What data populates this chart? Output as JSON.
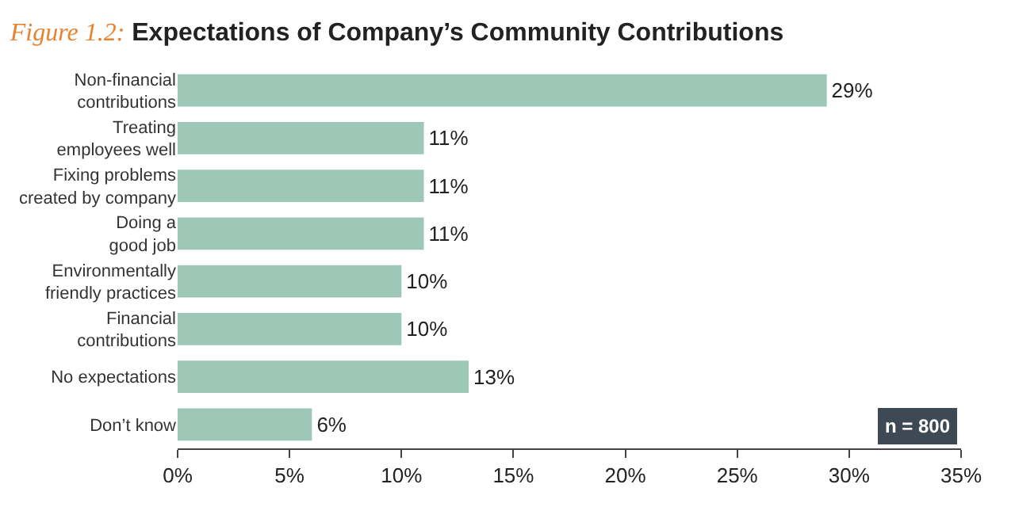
{
  "chart_data": {
    "type": "bar",
    "orientation": "horizontal",
    "title": "Figure 1.2:",
    "subtitle": "Expectations of Company’s Community Contributions",
    "categories": [
      "Non-financial\ncontributions",
      "Treating\nemployees well",
      "Fixing problems\ncreated by company",
      "Doing a\ngood job",
      "Environmentally\nfriendly practices",
      "Financial\ncontributions",
      "No expectations",
      "Don’t know"
    ],
    "values": [
      29,
      11,
      11,
      11,
      10,
      10,
      13,
      6
    ],
    "value_labels": [
      "29%",
      "11%",
      "11%",
      "11%",
      "10%",
      "10%",
      "13%",
      "6%"
    ],
    "color": "#9dc8b8",
    "xlim": [
      0,
      35
    ],
    "xticks": [
      {
        "value": 0,
        "label": "0%"
      },
      {
        "value": 5,
        "label": "5%"
      },
      {
        "value": 10,
        "label": "10%"
      },
      {
        "value": 15,
        "label": "15%"
      },
      {
        "value": 20,
        "label": "20%"
      },
      {
        "value": 25,
        "label": "25%"
      },
      {
        "value": 30,
        "label": "30%"
      },
      {
        "value": 35,
        "label": "35%"
      }
    ],
    "legend": false,
    "annotations": [
      "n = 800"
    ]
  }
}
